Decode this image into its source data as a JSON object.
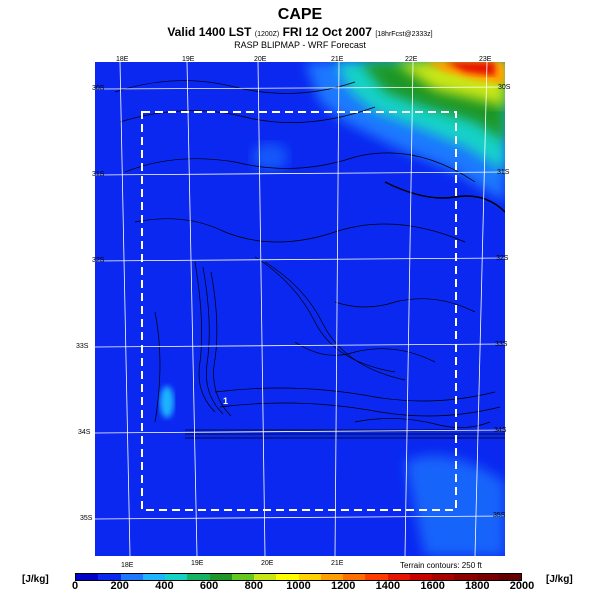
{
  "header": {
    "title": "CAPE",
    "valid_main": "Valid 1400 LST",
    "valid_z": "(1200Z)",
    "valid_date": "FRI 12 Oct 2007",
    "valid_fcst": "[18hrFcst@2333z]",
    "model_line": "RASP BLIPMAP - WRF Forecast"
  },
  "map": {
    "terrain_note": "Terrain contours: 250 ft",
    "point_marker": "1",
    "top_lon_labels": [
      "18E",
      "19E",
      "20E",
      "21E",
      "22E",
      "23E"
    ],
    "bottom_lon_labels": [
      "18E",
      "19E",
      "20E",
      "21E"
    ],
    "left_lat_labels": [
      "33S",
      "34S",
      "35S"
    ],
    "left_lat_labels_upper": [
      "30S",
      "31S",
      "32S"
    ],
    "right_lat_labels": [
      "30S",
      "31S",
      "32S",
      "33S",
      "34S",
      "35S"
    ],
    "colors": {
      "background": "#0a28f0",
      "grid": "#ffffff",
      "domain_box": "#ffffff",
      "contour": "#000000"
    }
  },
  "legend": {
    "unit_left": "[J/kg]",
    "unit_right": "[J/kg]",
    "tick_labels": [
      "0",
      "200",
      "400",
      "600",
      "800",
      "1000",
      "1200",
      "1400",
      "1600",
      "1800",
      "2000"
    ],
    "colors": [
      "#0000c8",
      "#0a28f0",
      "#1e78ff",
      "#1eb4ff",
      "#14d2c8",
      "#14b464",
      "#1e9628",
      "#64c81e",
      "#c8e614",
      "#ffff00",
      "#ffd200",
      "#ffa000",
      "#ff6e00",
      "#ff3c00",
      "#e61400",
      "#c80000",
      "#aa0000",
      "#8c0000",
      "#780000",
      "#640000"
    ]
  }
}
